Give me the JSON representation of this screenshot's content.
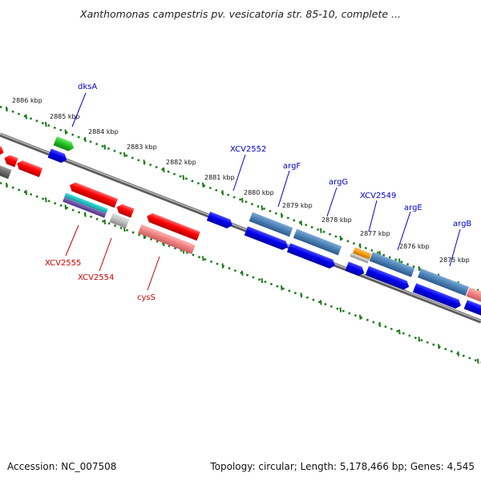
{
  "header": {
    "title": "Xanthomonas campestris pv. vesicatoria str. 85-10, complete ..."
  },
  "footer": {
    "accession": "Accession: NC_007508",
    "summary": "Topology: circular; Length: 5,178,466 bp; Genes: 4,545"
  },
  "scale_labels": [
    "2886 kbp",
    "2885 kbp",
    "2884 kbp",
    "2883 kbp",
    "2882 kbp",
    "2881 kbp",
    "2880 kbp",
    "2879 kbp",
    "2878 kbp",
    "2877 kbp",
    "2876 kbp",
    "2875 kbp"
  ],
  "gene_labels": {
    "top": [
      "dksA",
      "XCV2552",
      "argF",
      "argG",
      "XCV2549",
      "argE",
      "argB"
    ],
    "bottom": [
      "XCV2555",
      "XCV2554",
      "cysS"
    ]
  },
  "colors": {
    "label_forward": "#0000cc",
    "label_reverse": "#cc0000",
    "tick_green": "#1a7a1a",
    "backbone": "#888888"
  }
}
